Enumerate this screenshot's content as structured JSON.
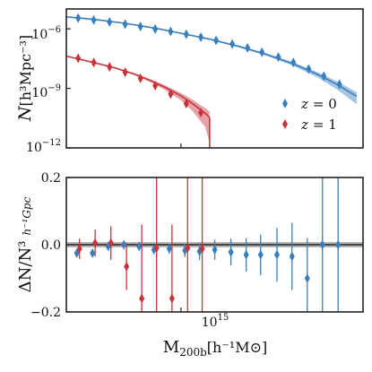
{
  "chart_data": [
    {
      "type": "scatter",
      "panel": "top",
      "x_scale": "log",
      "y_scale": "log",
      "xlim": [
        350000000000000.0,
        5300000000000000.0
      ],
      "ylim": [
        1e-12,
        1e-05
      ],
      "ylabel_main": "N",
      "ylabel_unit": "[h³Mpc⁻³]",
      "yticks": [
        {
          "value": 1e-06,
          "base": "10",
          "exp": "−6"
        },
        {
          "value": 1e-09,
          "base": "10",
          "exp": "−9"
        },
        {
          "value": 1e-12,
          "base": "10",
          "exp": "−12"
        }
      ],
      "grid": false,
      "legend_position": "center-right",
      "series": [
        {
          "name": "z = 0",
          "legend_lhs": "z",
          "legend_rhs": "= 0",
          "color": "#3a7fbd",
          "x": [
            390000000000000.0,
            450000000000000.0,
            520000000000000.0,
            600000000000000.0,
            690000000000000.0,
            790000000000000.0,
            910000000000000.0,
            1050000000000000.0,
            1200000000000000.0,
            1380000000000000.0,
            1600000000000000.0,
            1840000000000000.0,
            2100000000000000.0,
            2440000000000000.0,
            2800000000000000.0,
            3220000000000000.0,
            3700000000000000.0,
            4270000000000000.0
          ],
          "y": [
            3.5e-06,
            2.8e-06,
            2.2e-06,
            1.7e-06,
            1.3e-06,
            9.8e-07,
            7.3e-07,
            5.3e-07,
            3.8e-07,
            2.6e-07,
            1.7e-07,
            1.08e-07,
            6.6e-08,
            3.8e-08,
            2e-08,
            9.5e-09,
            4.1e-09,
            1.6e-09
          ],
          "model": {
            "x": [
              350000000000000.0,
              450000000000000.0,
              600000000000000.0,
              800000000000000.0,
              1000000000000000.0,
              1300000000000000.0,
              1700000000000000.0,
              2200000000000000.0,
              2800000000000000.0,
              3500000000000000.0,
              4200000000000000.0,
              5000000000000000.0
            ],
            "y": [
              4e-06,
              3e-06,
              1.9e-06,
              1.05e-06,
              6e-07,
              3e-07,
              1.3e-07,
              5e-08,
              1.7e-08,
              5e-09,
              1.5e-09,
              4e-10
            ],
            "band_frac": [
              0.03,
              0.03,
              0.04,
              0.05,
              0.06,
              0.08,
              0.1,
              0.14,
              0.2,
              0.3,
              0.45,
              0.6
            ]
          }
        },
        {
          "name": "z = 1",
          "legend_lhs": "z",
          "legend_rhs": "= 1",
          "color": "#c8343c",
          "x": [
            390000000000000.0,
            450000000000000.0,
            520000000000000.0,
            600000000000000.0,
            690000000000000.0,
            790000000000000.0,
            910000000000000.0,
            1050000000000000.0,
            1200000000000000.0
          ],
          "y": [
            3.3e-08,
            2e-08,
            1.2e-08,
            6.5e-09,
            3.2e-09,
            1.35e-09,
            5.2e-10,
            1.7e-10,
            6e-11
          ],
          "model": {
            "x": [
              350000000000000.0,
              450000000000000.0,
              550000000000000.0,
              650000000000000.0,
              750000000000000.0,
              850000000000000.0,
              1000000000000000.0,
              1120000000000000.0,
              1250000000000000.0,
              1300000000000000.0
            ],
            "y": [
              4.2e-08,
              2e-08,
              1.05e-08,
              5.3e-09,
              2.6e-09,
              1.25e-09,
              4.2e-10,
              1.6e-10,
              5.5e-11,
              3.5e-11
            ],
            "band_frac": [
              0.03,
              0.04,
              0.06,
              0.1,
              0.16,
              0.25,
              0.4,
              0.6,
              0.8,
              0.95
            ]
          }
        }
      ]
    },
    {
      "type": "scatter",
      "panel": "bottom",
      "x_scale": "log",
      "xlim": [
        350000000000000.0,
        5300000000000000.0
      ],
      "ylim": [
        -0.2,
        0.2
      ],
      "yticks": [
        "0.2",
        "0.0",
        "−0.2"
      ],
      "xtick_label": {
        "value": 1000000000000000.0,
        "base": "10",
        "exp": "15"
      },
      "xlabel_main": "M",
      "xlabel_sub": "200b",
      "xlabel_unit": "[h⁻¹M⊙]",
      "ylabel_main": "ΔN/N³",
      "ylabel_unit": "h⁻¹Gpc",
      "reference_line": 0.0,
      "reference_band": [
        -0.008,
        0.008
      ],
      "grid": false,
      "series": [
        {
          "name": "z = 0",
          "color": "#3a7fbd",
          "x": [
            390000000000000.0,
            450000000000000.0,
            520000000000000.0,
            600000000000000.0,
            690000000000000.0,
            790000000000000.0,
            910000000000000.0,
            1050000000000000.0,
            1200000000000000.0,
            1380000000000000.0,
            1600000000000000.0,
            1840000000000000.0,
            2100000000000000.0,
            2440000000000000.0,
            2800000000000000.0,
            3220000000000000.0,
            3700000000000000.0,
            4270000000000000.0
          ],
          "y": [
            -0.025,
            -0.025,
            -0.005,
            0.0,
            -0.005,
            -0.015,
            -0.012,
            -0.017,
            -0.02,
            -0.015,
            -0.022,
            -0.03,
            -0.03,
            -0.03,
            -0.035,
            -0.1,
            0.0,
            0.0
          ],
          "err": [
            0.004,
            0.005,
            0.006,
            0.007,
            0.009,
            0.012,
            0.015,
            0.02,
            0.025,
            0.03,
            0.04,
            0.05,
            0.06,
            0.08,
            0.1,
            0.12,
            0.2,
            0.2
          ]
        },
        {
          "name": "z = 1",
          "color": "#c8343c",
          "x": [
            390000000000000.0,
            450000000000000.0,
            520000000000000.0,
            600000000000000.0,
            690000000000000.0,
            790000000000000.0,
            910000000000000.0,
            1050000000000000.0,
            1200000000000000.0
          ],
          "y": [
            -0.012,
            0.005,
            0.005,
            -0.065,
            -0.16,
            -0.01,
            -0.16,
            -0.01,
            -0.012
          ],
          "err": [
            0.03,
            0.04,
            0.05,
            0.07,
            0.22,
            0.22,
            0.22,
            0.22,
            0.22
          ]
        }
      ]
    }
  ]
}
